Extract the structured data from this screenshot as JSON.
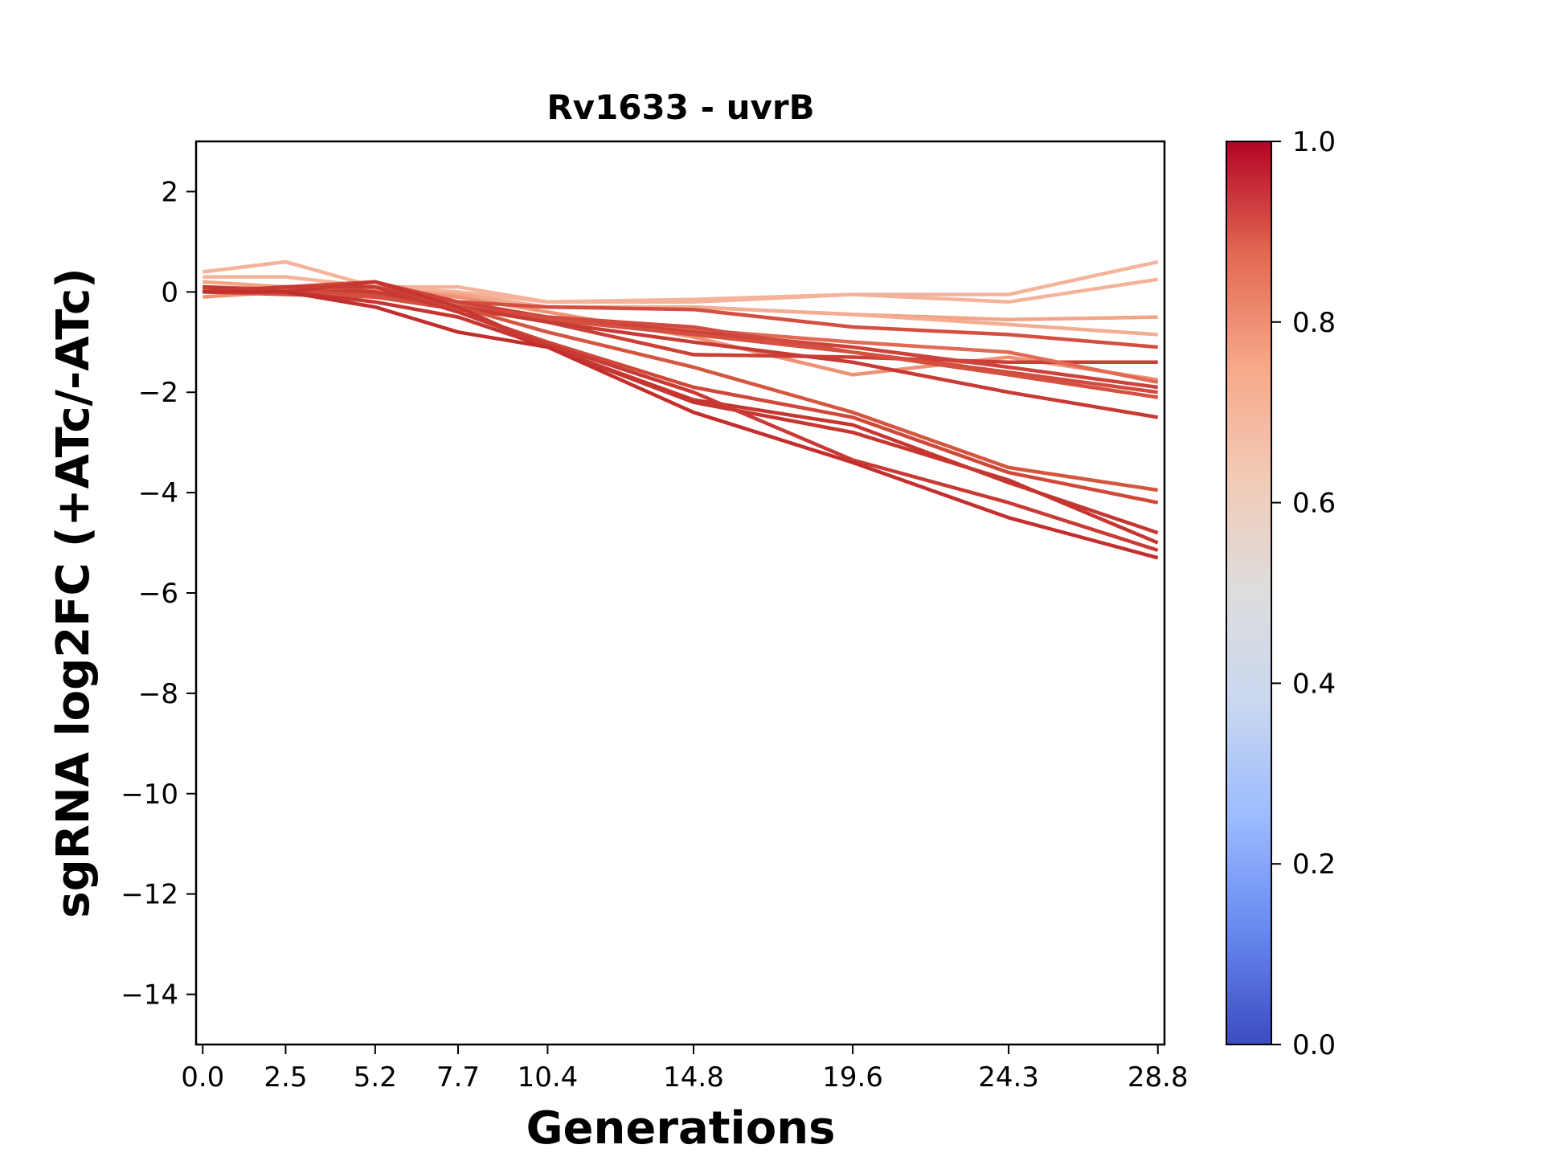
{
  "chart_data": {
    "type": "line",
    "title": "Rv1633 - uvrB",
    "xlabel": "Generations",
    "ylabel": "sgRNA log2FC (+ATc/-ATc)",
    "x": [
      0.0,
      2.5,
      5.2,
      7.7,
      10.4,
      14.8,
      19.6,
      24.3,
      28.8
    ],
    "x_tick_labels": [
      "0.0",
      "2.5",
      "5.2",
      "7.7",
      "10.4",
      "14.8",
      "19.6",
      "24.3",
      "28.8"
    ],
    "y_ticks": [
      2,
      0,
      -2,
      -4,
      -6,
      -8,
      -10,
      -12,
      -14
    ],
    "y_tick_labels": [
      "2",
      "0",
      "−2",
      "−4",
      "−6",
      "−8",
      "−10",
      "−12",
      "−14"
    ],
    "xlim": [
      -0.2,
      29.0
    ],
    "ylim": [
      -15,
      3
    ],
    "grid": false,
    "colorbar": {
      "label": "",
      "range": [
        0.0,
        1.0
      ],
      "ticks": [
        0.0,
        0.2,
        0.4,
        0.6,
        0.8,
        1.0
      ],
      "tick_labels": [
        "0.0",
        "0.2",
        "0.4",
        "0.6",
        "0.8",
        "1.0"
      ],
      "colormap": "coolwarm",
      "stops": [
        "#3b4cc0",
        "#6788ee",
        "#9abbff",
        "#c9d7f0",
        "#dddddd",
        "#f2cbb7",
        "#f7a889",
        "#e26952",
        "#b40426"
      ]
    },
    "series": [
      {
        "color": "#f4b39a",
        "values": [
          0.4,
          0.6,
          0.1,
          0.1,
          -0.2,
          -0.2,
          -0.05,
          -0.05,
          0.6
        ]
      },
      {
        "color": "#f4b39a",
        "values": [
          0.3,
          0.3,
          0.1,
          0.0,
          -0.2,
          -0.15,
          -0.05,
          -0.2,
          0.25
        ]
      },
      {
        "color": "#f2a487",
        "values": [
          0.2,
          0.1,
          0.05,
          -0.05,
          -0.3,
          -0.3,
          -0.45,
          -0.55,
          -0.5
        ]
      },
      {
        "color": "#f3ad92",
        "values": [
          0.0,
          0.1,
          0.0,
          -0.1,
          -0.3,
          -0.3,
          -0.45,
          -0.65,
          -0.85
        ]
      },
      {
        "color": "#ef9274",
        "values": [
          -0.1,
          0.0,
          0.05,
          -0.1,
          -0.4,
          -0.9,
          -1.65,
          -1.3,
          -1.75
        ]
      },
      {
        "color": "#d44e41",
        "values": [
          0.1,
          0.05,
          -0.05,
          -0.2,
          -0.3,
          -0.35,
          -0.7,
          -0.85,
          -1.1
        ]
      },
      {
        "color": "#cc3f37",
        "values": [
          0.0,
          0.0,
          -0.1,
          -0.3,
          -0.6,
          -1.25,
          -1.3,
          -1.4,
          -1.4
        ]
      },
      {
        "color": "#e06a53",
        "values": [
          0.05,
          0.0,
          -0.1,
          -0.25,
          -0.55,
          -0.75,
          -1.0,
          -1.2,
          -1.8
        ]
      },
      {
        "color": "#cd423a",
        "values": [
          0.0,
          0.05,
          0.2,
          -0.2,
          -0.5,
          -0.8,
          -1.1,
          -1.5,
          -1.9
        ]
      },
      {
        "color": "#d24b40",
        "values": [
          0.1,
          0.0,
          -0.05,
          -0.3,
          -0.5,
          -0.7,
          -1.2,
          -1.6,
          -2.0
        ]
      },
      {
        "color": "#d5503f",
        "values": [
          0.0,
          -0.05,
          -0.1,
          -0.35,
          -0.55,
          -0.85,
          -1.2,
          -1.65,
          -2.1
        ]
      },
      {
        "color": "#c83a34",
        "values": [
          0.0,
          0.1,
          0.0,
          -0.3,
          -0.6,
          -1.0,
          -1.4,
          -2.0,
          -2.5
        ]
      },
      {
        "color": "#d4563f",
        "values": [
          0.05,
          0.05,
          0.1,
          -0.3,
          -0.8,
          -1.5,
          -2.4,
          -3.5,
          -3.95
        ]
      },
      {
        "color": "#cf4838",
        "values": [
          0.0,
          0.1,
          0.2,
          -0.4,
          -1.0,
          -1.9,
          -2.5,
          -3.6,
          -4.2
        ]
      },
      {
        "color": "#c63630",
        "values": [
          0.1,
          0.0,
          -0.2,
          -0.5,
          -1.1,
          -2.15,
          -2.65,
          -3.8,
          -4.8
        ]
      },
      {
        "color": "#c63630",
        "values": [
          0.0,
          0.0,
          0.2,
          -0.3,
          -1.1,
          -2.2,
          -2.8,
          -3.75,
          -5.0
        ]
      },
      {
        "color": "#c83a34",
        "values": [
          0.0,
          0.1,
          0.1,
          -0.4,
          -1.05,
          -2.0,
          -3.35,
          -4.2,
          -5.15
        ]
      },
      {
        "color": "#c32e2d",
        "values": [
          0.0,
          0.0,
          -0.3,
          -0.8,
          -1.1,
          -2.4,
          -3.4,
          -4.5,
          -5.3
        ]
      }
    ]
  }
}
